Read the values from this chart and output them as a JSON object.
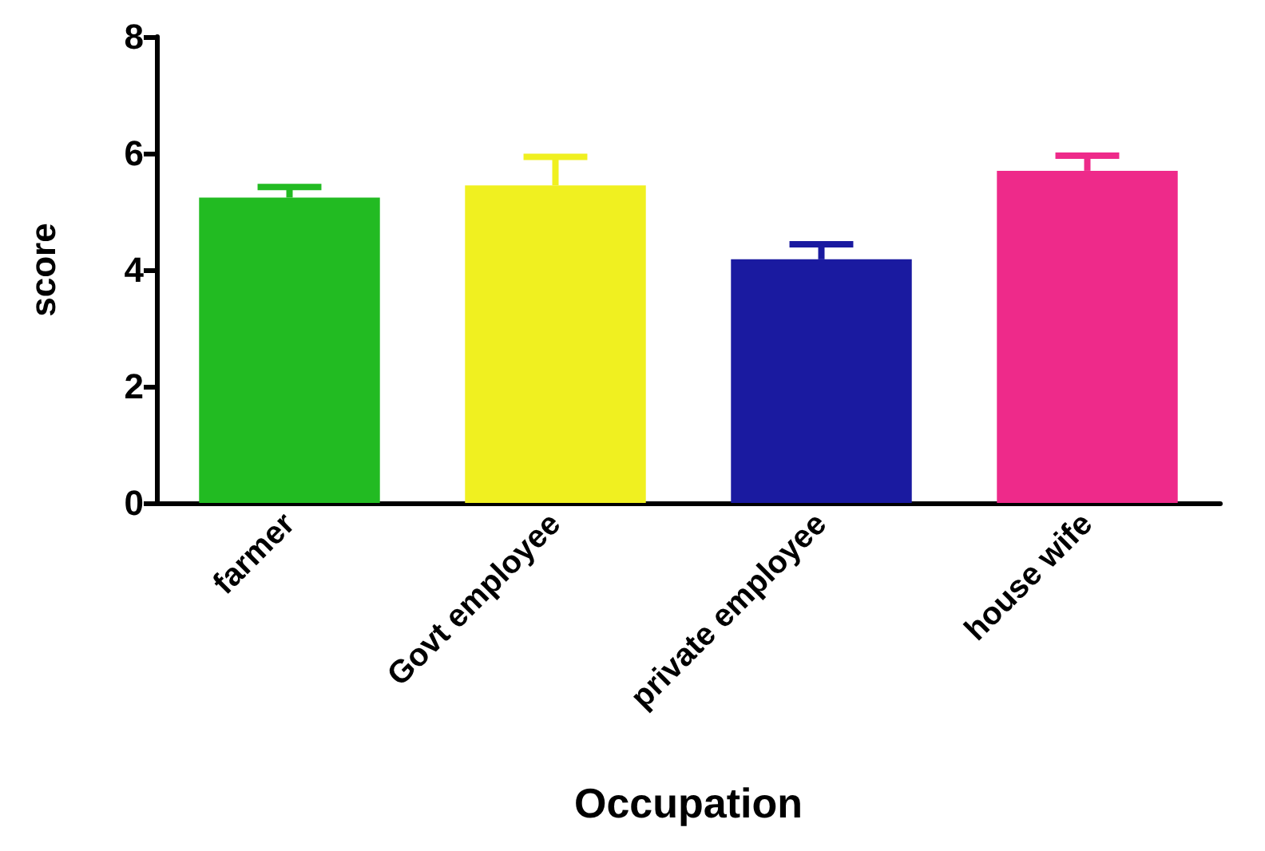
{
  "chart_data": {
    "type": "bar",
    "xlabel": "Occupation",
    "ylabel": "score",
    "categories": [
      "farmer",
      "Govt employee",
      "private employee",
      "house wife"
    ],
    "values": [
      5.24,
      5.45,
      4.18,
      5.7
    ],
    "colors": [
      "#22bb22",
      "#f0f020",
      "#1a1aa0",
      "#ee2a8a"
    ],
    "errors": [
      [
        5.24,
        5.42
      ],
      [
        5.45,
        5.94
      ],
      [
        4.18,
        4.44
      ],
      [
        5.7,
        5.96
      ]
    ],
    "ylim": [
      0,
      8
    ],
    "yticks": [
      0,
      2,
      4,
      6,
      8
    ],
    "grid": false
  }
}
